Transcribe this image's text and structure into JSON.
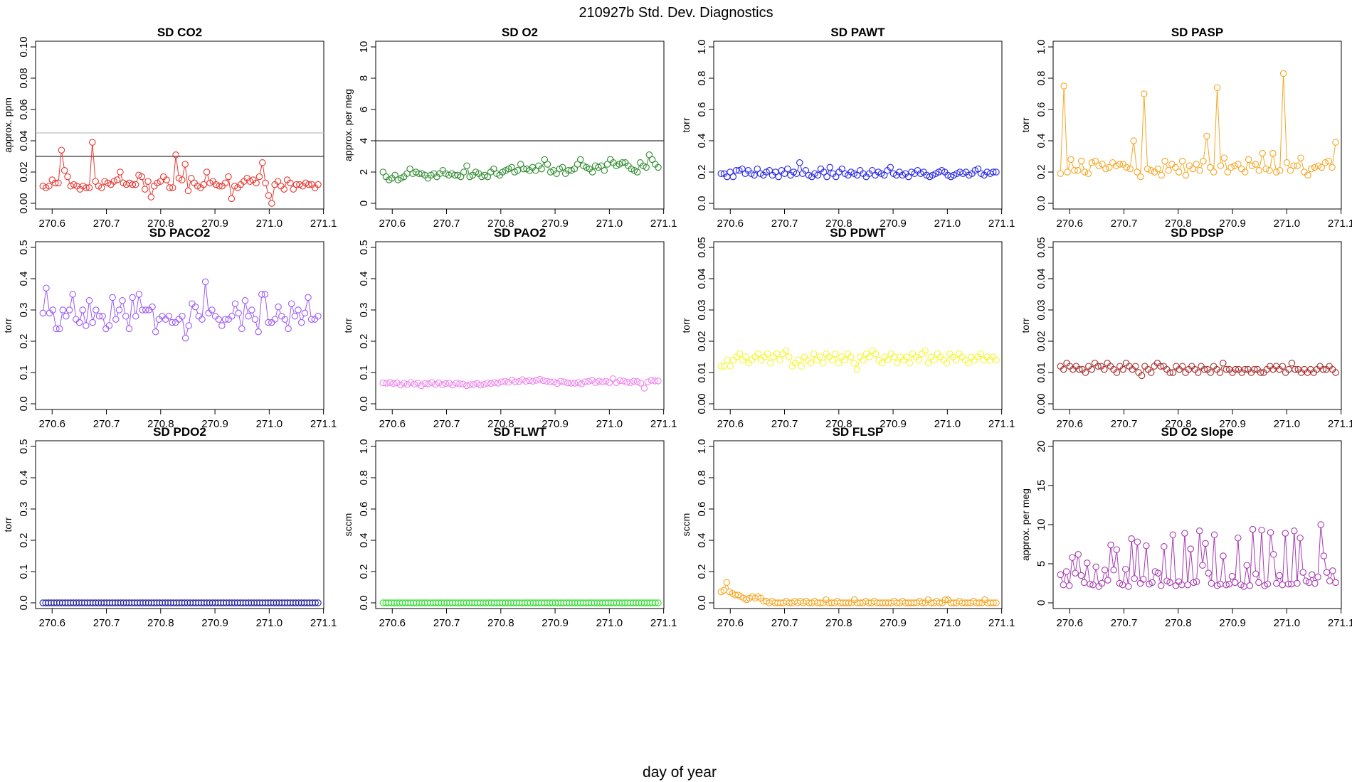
{
  "figure_title": "210927b   Std. Dev. Diagnostics",
  "x_axis_label": "day of year",
  "chart_data": [
    {
      "type": "scatter",
      "title": "SD CO2",
      "ylabel": "approx. ppm",
      "color": "#e8352e",
      "ylim": [
        0,
        0.1
      ],
      "yticks": [
        0.0,
        0.02,
        0.04,
        0.06,
        0.08,
        0.1
      ],
      "xlim": [
        270.58,
        271.09
      ],
      "xticks": [
        270.6,
        270.7,
        270.8,
        270.9,
        271.0,
        271.1
      ],
      "hlines": [
        {
          "y": 0.045,
          "color": "#bdbdbd"
        },
        {
          "y": 0.03,
          "color": "#333333"
        }
      ],
      "values": [
        0.011,
        0.01,
        0.011,
        0.015,
        0.013,
        0.013,
        0.034,
        0.021,
        0.017,
        0.011,
        0.012,
        0.011,
        0.009,
        0.011,
        0.01,
        0.01,
        0.039,
        0.014,
        0.011,
        0.01,
        0.014,
        0.013,
        0.012,
        0.014,
        0.015,
        0.02,
        0.013,
        0.012,
        0.013,
        0.012,
        0.012,
        0.018,
        0.017,
        0.009,
        0.014,
        0.004,
        0.011,
        0.013,
        0.014,
        0.017,
        0.015,
        0.01,
        0.01,
        0.031,
        0.016,
        0.015,
        0.025,
        0.008,
        0.016,
        0.013,
        0.011,
        0.01,
        0.012,
        0.02,
        0.013,
        0.014,
        0.012,
        0.011,
        0.011,
        0.013,
        0.017,
        0.003,
        0.011,
        0.01,
        0.012,
        0.014,
        0.016,
        0.014,
        0.015,
        0.013,
        0.017,
        0.026,
        0.013,
        0.005,
        0.0,
        0.012,
        0.014,
        0.011,
        0.009,
        0.015,
        0.013,
        0.009,
        0.012,
        0.012,
        0.011,
        0.013,
        0.012,
        0.012,
        0.01,
        0.012
      ]
    },
    {
      "type": "scatter",
      "title": "SD O2",
      "ylabel": "approx. per meg",
      "color": "#2e8b2e",
      "ylim": [
        0,
        10
      ],
      "yticks": [
        0,
        2,
        4,
        6,
        8,
        10
      ],
      "xlim": [
        270.58,
        271.09
      ],
      "xticks": [
        270.6,
        270.7,
        270.8,
        270.9,
        271.0,
        271.1
      ],
      "hlines": [
        {
          "y": 4,
          "color": "#333333"
        }
      ],
      "values": [
        2.0,
        1.7,
        1.5,
        1.6,
        1.8,
        1.5,
        1.6,
        1.7,
        1.9,
        2.2,
        1.9,
        2.0,
        1.9,
        1.9,
        1.8,
        1.6,
        1.8,
        1.9,
        1.7,
        1.9,
        2.1,
        1.9,
        1.8,
        1.9,
        1.8,
        1.8,
        1.7,
        2.0,
        2.4,
        1.7,
        1.8,
        2.0,
        1.9,
        1.7,
        1.8,
        1.7,
        2.0,
        2.2,
        1.9,
        1.8,
        2.0,
        2.1,
        2.2,
        2.3,
        2.0,
        2.1,
        2.5,
        2.2,
        2.2,
        2.1,
        2.3,
        2.1,
        2.4,
        2.2,
        2.8,
        2.5,
        2.0,
        2.1,
        1.9,
        2.2,
        2.3,
        1.9,
        2.1,
        2.1,
        2.2,
        2.5,
        2.8,
        2.4,
        2.3,
        2.2,
        2.0,
        2.4,
        2.3,
        2.4,
        2.1,
        2.5,
        2.8,
        2.6,
        2.4,
        2.5,
        2.6,
        2.6,
        2.4,
        2.2,
        2.1,
        2.0,
        2.6,
        2.4,
        2.3,
        3.1,
        2.8,
        2.5,
        2.3
      ]
    },
    {
      "type": "scatter",
      "title": "SD PAWT",
      "ylabel": "torr",
      "color": "#2323e8",
      "ylim": [
        0,
        1.0
      ],
      "yticks": [
        0.0,
        0.2,
        0.4,
        0.6,
        0.8,
        1.0
      ],
      "xlim": [
        270.58,
        271.09
      ],
      "xticks": [
        270.6,
        270.7,
        270.8,
        270.9,
        271.0,
        271.1
      ],
      "hlines": [],
      "values": [
        0.19,
        0.19,
        0.17,
        0.2,
        0.17,
        0.21,
        0.21,
        0.22,
        0.19,
        0.21,
        0.19,
        0.18,
        0.22,
        0.19,
        0.18,
        0.2,
        0.21,
        0.18,
        0.2,
        0.17,
        0.21,
        0.19,
        0.22,
        0.18,
        0.2,
        0.19,
        0.26,
        0.19,
        0.21,
        0.18,
        0.17,
        0.19,
        0.18,
        0.22,
        0.2,
        0.17,
        0.23,
        0.19,
        0.17,
        0.2,
        0.22,
        0.19,
        0.18,
        0.2,
        0.19,
        0.18,
        0.21,
        0.19,
        0.17,
        0.19,
        0.21,
        0.18,
        0.2,
        0.19,
        0.18,
        0.21,
        0.23,
        0.19,
        0.18,
        0.2,
        0.18,
        0.19,
        0.17,
        0.2,
        0.19,
        0.21,
        0.19,
        0.2,
        0.18,
        0.17,
        0.18,
        0.19,
        0.2,
        0.21,
        0.2,
        0.18,
        0.17,
        0.18,
        0.19,
        0.2,
        0.19,
        0.2,
        0.18,
        0.19,
        0.21,
        0.22,
        0.19,
        0.18,
        0.2,
        0.19,
        0.2,
        0.2
      ]
    },
    {
      "type": "scatter",
      "title": "SD PASP",
      "ylabel": "torr",
      "color": "#f5a623",
      "ylim": [
        0,
        1.0
      ],
      "yticks": [
        0.0,
        0.2,
        0.4,
        0.6,
        0.8,
        1.0
      ],
      "xlim": [
        270.58,
        271.09
      ],
      "xticks": [
        270.6,
        270.7,
        270.8,
        270.9,
        271.0,
        271.1
      ],
      "hlines": [],
      "values": [
        0.19,
        0.75,
        0.2,
        0.28,
        0.21,
        0.21,
        0.27,
        0.2,
        0.19,
        0.26,
        0.27,
        0.24,
        0.25,
        0.22,
        0.23,
        0.26,
        0.24,
        0.25,
        0.25,
        0.23,
        0.22,
        0.4,
        0.2,
        0.17,
        0.7,
        0.22,
        0.21,
        0.2,
        0.22,
        0.18,
        0.27,
        0.21,
        0.25,
        0.23,
        0.2,
        0.27,
        0.18,
        0.24,
        0.22,
        0.25,
        0.21,
        0.27,
        0.43,
        0.23,
        0.2,
        0.74,
        0.24,
        0.29,
        0.2,
        0.23,
        0.24,
        0.25,
        0.22,
        0.2,
        0.28,
        0.24,
        0.25,
        0.21,
        0.32,
        0.22,
        0.21,
        0.32,
        0.2,
        0.21,
        0.83,
        0.26,
        0.21,
        0.24,
        0.24,
        0.29,
        0.2,
        0.18,
        0.22,
        0.23,
        0.24,
        0.23,
        0.26,
        0.27,
        0.23,
        0.39
      ]
    },
    {
      "type": "scatter",
      "title": "SD PACO2",
      "ylabel": "torr",
      "color": "#9b59f5",
      "ylim": [
        0,
        0.5
      ],
      "yticks": [
        0.0,
        0.1,
        0.2,
        0.3,
        0.4,
        0.5
      ],
      "xlim": [
        270.58,
        271.09
      ],
      "xticks": [
        270.6,
        270.7,
        270.8,
        270.9,
        271.0,
        271.1
      ],
      "hlines": [],
      "values": [
        0.29,
        0.37,
        0.29,
        0.3,
        0.24,
        0.24,
        0.3,
        0.28,
        0.3,
        0.35,
        0.27,
        0.26,
        0.3,
        0.25,
        0.33,
        0.26,
        0.3,
        0.28,
        0.28,
        0.24,
        0.25,
        0.34,
        0.27,
        0.3,
        0.33,
        0.28,
        0.24,
        0.34,
        0.28,
        0.35,
        0.3,
        0.3,
        0.3,
        0.31,
        0.23,
        0.27,
        0.28,
        0.27,
        0.28,
        0.26,
        0.26,
        0.27,
        0.28,
        0.21,
        0.25,
        0.32,
        0.31,
        0.28,
        0.27,
        0.39,
        0.29,
        0.3,
        0.28,
        0.27,
        0.25,
        0.27,
        0.27,
        0.28,
        0.32,
        0.29,
        0.24,
        0.33,
        0.28,
        0.3,
        0.27,
        0.23,
        0.35,
        0.35,
        0.26,
        0.26,
        0.27,
        0.31,
        0.28,
        0.27,
        0.24,
        0.32,
        0.28,
        0.3,
        0.26,
        0.29,
        0.34,
        0.27,
        0.27,
        0.28
      ]
    },
    {
      "type": "scatter",
      "title": "SD PAO2",
      "ylabel": "torr",
      "color": "#ee82ee",
      "ylim": [
        0,
        0.5
      ],
      "yticks": [
        0.0,
        0.1,
        0.2,
        0.3,
        0.4,
        0.5
      ],
      "xlim": [
        270.58,
        271.09
      ],
      "xticks": [
        270.6,
        270.7,
        270.8,
        270.9,
        271.0,
        271.1
      ],
      "hlines": [],
      "values": [
        0.067,
        0.066,
        0.068,
        0.065,
        0.067,
        0.06,
        0.066,
        0.062,
        0.068,
        0.063,
        0.066,
        0.058,
        0.065,
        0.064,
        0.068,
        0.062,
        0.067,
        0.061,
        0.065,
        0.066,
        0.06,
        0.066,
        0.064,
        0.063,
        0.058,
        0.061,
        0.062,
        0.065,
        0.06,
        0.062,
        0.066,
        0.065,
        0.068,
        0.066,
        0.07,
        0.072,
        0.069,
        0.076,
        0.07,
        0.071,
        0.077,
        0.072,
        0.074,
        0.072,
        0.075,
        0.078,
        0.074,
        0.072,
        0.07,
        0.07,
        0.065,
        0.072,
        0.07,
        0.067,
        0.066,
        0.066,
        0.068,
        0.064,
        0.07,
        0.072,
        0.075,
        0.068,
        0.072,
        0.07,
        0.072,
        0.068,
        0.08,
        0.068,
        0.074,
        0.073,
        0.069,
        0.068,
        0.072,
        0.071,
        0.066,
        0.05,
        0.07,
        0.075,
        0.073,
        0.073
      ]
    },
    {
      "type": "scatter",
      "title": "SD PDWT",
      "ylabel": "torr",
      "color": "#f5f53a",
      "ylim": [
        0,
        0.05
      ],
      "yticks": [
        0.0,
        0.01,
        0.02,
        0.03,
        0.04,
        0.05
      ],
      "xlim": [
        270.58,
        271.09
      ],
      "xticks": [
        270.6,
        270.7,
        270.8,
        270.9,
        271.0,
        271.1
      ],
      "hlines": [],
      "values": [
        0.012,
        0.012,
        0.014,
        0.012,
        0.014,
        0.015,
        0.016,
        0.014,
        0.015,
        0.013,
        0.014,
        0.015,
        0.016,
        0.014,
        0.015,
        0.016,
        0.013,
        0.015,
        0.016,
        0.014,
        0.016,
        0.017,
        0.015,
        0.012,
        0.013,
        0.014,
        0.012,
        0.015,
        0.014,
        0.013,
        0.016,
        0.014,
        0.015,
        0.013,
        0.016,
        0.015,
        0.014,
        0.016,
        0.013,
        0.015,
        0.014,
        0.016,
        0.015,
        0.013,
        0.011,
        0.015,
        0.014,
        0.016,
        0.015,
        0.017,
        0.016,
        0.014,
        0.013,
        0.015,
        0.014,
        0.016,
        0.015,
        0.013,
        0.015,
        0.014,
        0.015,
        0.013,
        0.016,
        0.015,
        0.014,
        0.016,
        0.017,
        0.013,
        0.015,
        0.014,
        0.016,
        0.015,
        0.014,
        0.013,
        0.016,
        0.015,
        0.014,
        0.016,
        0.015,
        0.014,
        0.013,
        0.015,
        0.014,
        0.015,
        0.016,
        0.014,
        0.015,
        0.014,
        0.015,
        0.014
      ]
    },
    {
      "type": "scatter",
      "title": "SD PDSP",
      "ylabel": "torr",
      "color": "#a52a2a",
      "ylim": [
        0,
        0.05
      ],
      "yticks": [
        0.0,
        0.01,
        0.02,
        0.03,
        0.04,
        0.05
      ],
      "xlim": [
        270.58,
        271.09
      ],
      "xticks": [
        270.6,
        270.7,
        270.8,
        270.9,
        271.0,
        271.1
      ],
      "hlines": [],
      "values": [
        0.012,
        0.011,
        0.013,
        0.012,
        0.011,
        0.012,
        0.011,
        0.011,
        0.01,
        0.012,
        0.011,
        0.013,
        0.012,
        0.012,
        0.011,
        0.013,
        0.012,
        0.011,
        0.01,
        0.012,
        0.011,
        0.013,
        0.012,
        0.011,
        0.012,
        0.01,
        0.009,
        0.012,
        0.011,
        0.01,
        0.012,
        0.013,
        0.012,
        0.012,
        0.011,
        0.01,
        0.01,
        0.012,
        0.011,
        0.012,
        0.01,
        0.011,
        0.012,
        0.011,
        0.01,
        0.012,
        0.011,
        0.011,
        0.01,
        0.012,
        0.011,
        0.01,
        0.013,
        0.011,
        0.011,
        0.01,
        0.011,
        0.011,
        0.01,
        0.011,
        0.011,
        0.01,
        0.011,
        0.011,
        0.01,
        0.01,
        0.011,
        0.012,
        0.011,
        0.012,
        0.011,
        0.012,
        0.01,
        0.011,
        0.013,
        0.011,
        0.011,
        0.01,
        0.011,
        0.01,
        0.011,
        0.01,
        0.011,
        0.012,
        0.011,
        0.011,
        0.012,
        0.011,
        0.01
      ]
    },
    {
      "type": "scatter",
      "title": "SD PDO2",
      "ylabel": "torr",
      "color": "#1e1e9b",
      "ylim": [
        0,
        0.5
      ],
      "yticks": [
        0.0,
        0.1,
        0.2,
        0.3,
        0.4,
        0.5
      ],
      "xlim": [
        270.58,
        271.09
      ],
      "xticks": [
        270.6,
        270.7,
        270.8,
        270.9,
        271.0,
        271.1
      ],
      "hlines": [],
      "constant": 0.0,
      "count": 100
    },
    {
      "type": "scatter",
      "title": "SD FLWT",
      "ylabel": "sccm",
      "color": "#33dd33",
      "ylim": [
        0,
        1.0
      ],
      "yticks": [
        0.0,
        0.2,
        0.4,
        0.6,
        0.8,
        1.0
      ],
      "xlim": [
        270.58,
        271.09
      ],
      "xticks": [
        270.6,
        270.7,
        270.8,
        270.9,
        271.0,
        271.1
      ],
      "hlines": [],
      "constant": 0.0,
      "count": 100
    },
    {
      "type": "scatter",
      "title": "SD FLSP",
      "ylabel": "sccm",
      "color": "#f5a623",
      "ylim": [
        0,
        1.0
      ],
      "yticks": [
        0.0,
        0.2,
        0.4,
        0.6,
        0.8,
        1.0
      ],
      "xlim": [
        270.58,
        271.09
      ],
      "xticks": [
        270.6,
        270.7,
        270.8,
        270.9,
        271.0,
        271.1
      ],
      "hlines": [],
      "values": [
        0.07,
        0.08,
        0.13,
        0.07,
        0.06,
        0.05,
        0.05,
        0.04,
        0.03,
        0.02,
        0.03,
        0.04,
        0.03,
        0.04,
        0.03,
        0.01,
        0.01,
        0.0,
        0.01,
        0.0,
        0.0,
        0.0,
        0.0,
        0.01,
        0.0,
        0.0,
        0.01,
        0.0,
        0.01,
        0.0,
        0.01,
        0.0,
        0.0,
        0.01,
        0.0,
        0.0,
        0.0,
        0.02,
        0.0,
        0.0,
        0.0,
        0.01,
        0.0,
        0.0,
        0.0,
        0.0,
        0.0,
        0.02,
        0.0,
        0.0,
        0.0,
        0.01,
        0.0,
        0.0,
        0.01,
        0.0,
        0.0,
        0.0,
        0.0,
        0.0,
        0.0,
        0.01,
        0.0,
        0.0,
        0.01,
        0.0,
        0.0,
        0.0,
        0.0,
        0.0,
        0.01,
        0.0,
        0.0,
        0.02,
        0.0,
        0.0,
        0.01,
        0.0,
        0.0,
        0.02,
        0.02,
        0.0,
        0.0,
        0.0,
        0.01,
        0.0,
        0.0,
        0.0,
        0.0,
        0.01,
        0.0,
        0.0,
        0.0,
        0.02,
        0.0,
        0.0,
        0.0,
        0.0
      ]
    },
    {
      "type": "scatter",
      "title": "SD O2 Slope",
      "ylabel": "approx. per meg",
      "color": "#a63ab2",
      "ylim": [
        0,
        20
      ],
      "yticks": [
        0,
        5,
        10,
        15,
        20
      ],
      "xlim": [
        270.58,
        271.09
      ],
      "xticks": [
        270.6,
        270.7,
        270.8,
        270.9,
        271.0,
        271.1
      ],
      "hlines": [],
      "values": [
        3.6,
        2.3,
        4.0,
        2.2,
        5.8,
        3.8,
        6.2,
        3.5,
        2.6,
        5.1,
        2.4,
        2.3,
        4.6,
        2.1,
        2.5,
        4.2,
        2.9,
        7.4,
        4.2,
        6.8,
        2.5,
        2.3,
        4.3,
        2.1,
        8.2,
        3.1,
        7.8,
        2.5,
        3.0,
        7.3,
        2.4,
        2.6,
        4.0,
        3.8,
        2.2,
        7.2,
        2.8,
        2.6,
        8.7,
        2.2,
        2.7,
        2.3,
        8.9,
        2.3,
        6.9,
        2.6,
        2.7,
        9.2,
        4.8,
        7.6,
        3.8,
        2.5,
        8.7,
        2.2,
        2.4,
        6.0,
        2.3,
        2.4,
        3.4,
        2.6,
        8.3,
        2.3,
        2.1,
        4.8,
        2.2,
        9.4,
        3.7,
        2.6,
        9.3,
        2.2,
        2.4,
        9.0,
        6.2,
        2.5,
        3.5,
        2.3,
        8.9,
        2.4,
        2.4,
        9.2,
        2.5,
        8.3,
        3.9,
        2.8,
        2.6,
        3.6,
        2.5,
        3.3,
        10.0,
        6.0,
        3.9,
        2.8,
        4.1,
        2.6
      ]
    }
  ]
}
